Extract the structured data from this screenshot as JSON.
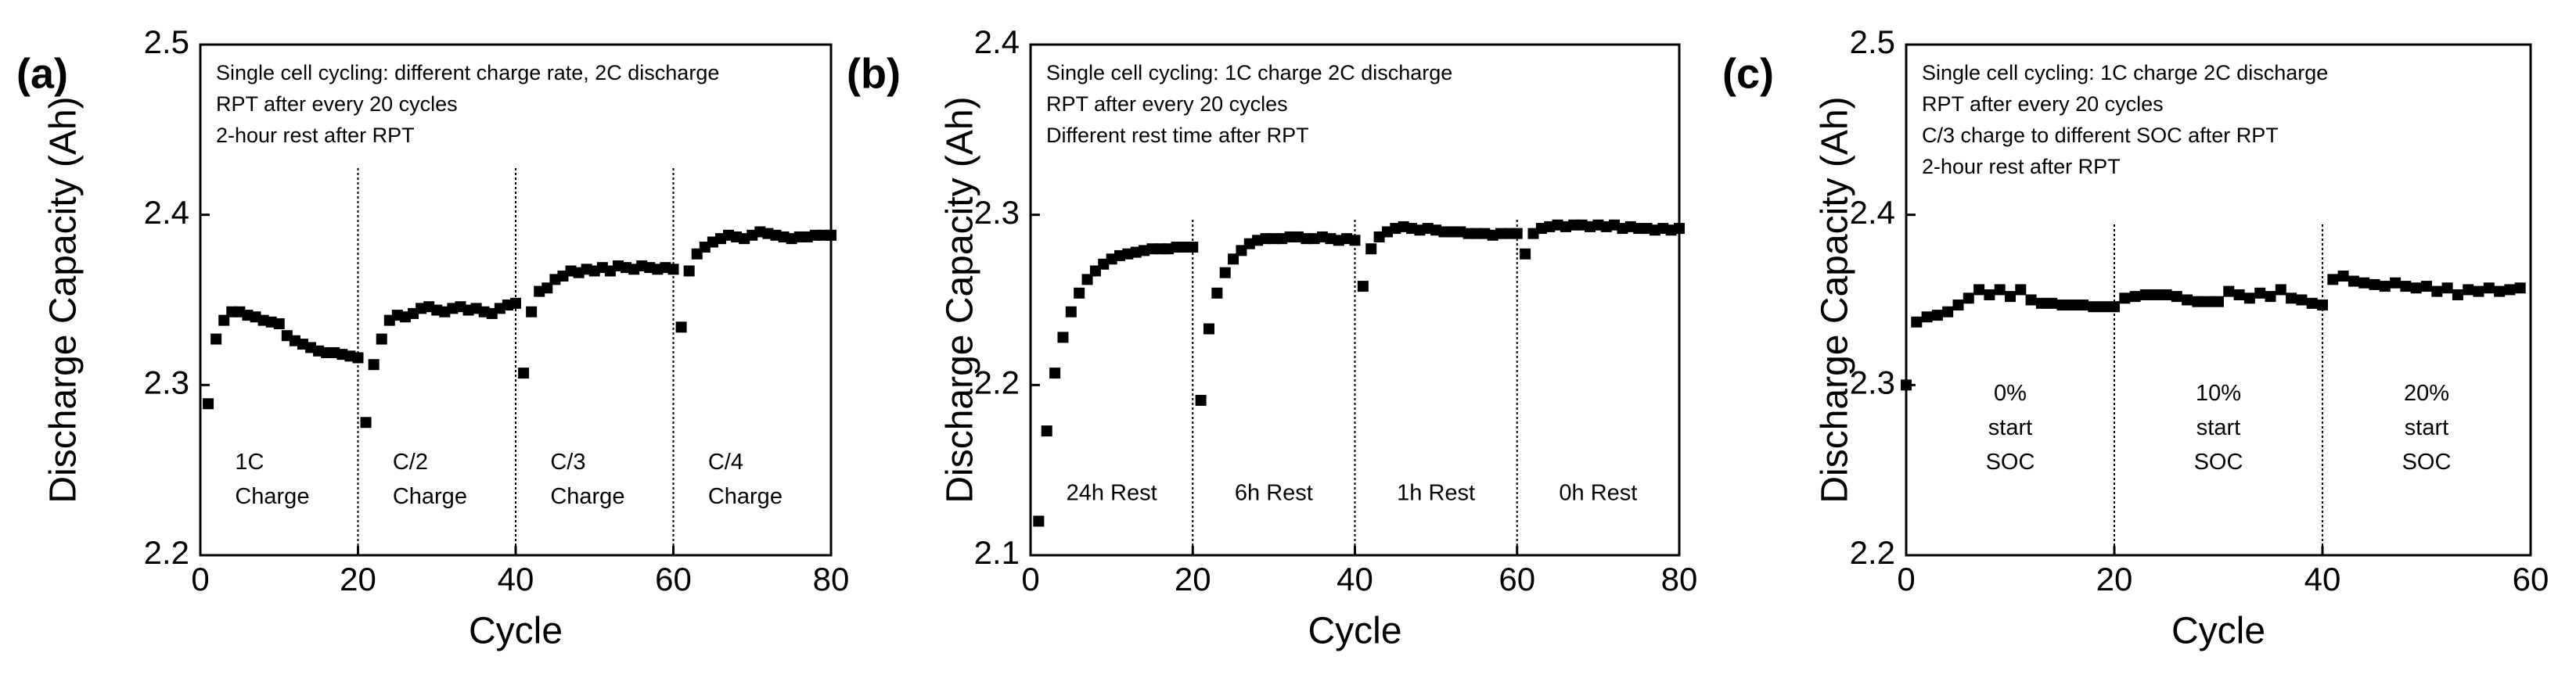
{
  "chart_data": [
    {
      "type": "scatter",
      "label": "(a)",
      "ylabel": "Discharge Capacity (Ah)",
      "xlabel": "Cycle",
      "annotations": [
        "Single cell cycling: different charge rate, 2C discharge",
        "RPT after every 20 cycles",
        "2-hour rest after RPT"
      ],
      "regions": [
        [
          "1C",
          "Charge"
        ],
        [
          "C/2",
          "Charge"
        ],
        [
          "C/3",
          "Charge"
        ],
        [
          "C/4",
          "Charge"
        ]
      ],
      "vlines": [
        20,
        40,
        60
      ],
      "xlim": [
        0,
        80
      ],
      "xticks": [
        0,
        20,
        40,
        60,
        80
      ],
      "ylim": [
        2.2,
        2.5
      ],
      "yticks": [
        2.2,
        2.3,
        2.4,
        2.5
      ],
      "color": "#000000",
      "x": [
        1,
        2,
        3,
        4,
        5,
        6,
        7,
        8,
        9,
        10,
        11,
        12,
        13,
        14,
        15,
        16,
        17,
        18,
        19,
        20,
        21,
        22,
        23,
        24,
        25,
        26,
        27,
        28,
        29,
        30,
        31,
        32,
        33,
        34,
        35,
        36,
        37,
        38,
        39,
        40,
        41,
        42,
        43,
        44,
        45,
        46,
        47,
        48,
        49,
        50,
        51,
        52,
        53,
        54,
        55,
        56,
        57,
        58,
        59,
        60,
        61,
        62,
        63,
        64,
        65,
        66,
        67,
        68,
        69,
        70,
        71,
        72,
        73,
        74,
        75,
        76,
        77,
        78,
        79,
        80
      ],
      "values": [
        2.289,
        2.327,
        2.338,
        2.343,
        2.343,
        2.341,
        2.34,
        2.338,
        2.337,
        2.336,
        2.329,
        2.326,
        2.324,
        2.322,
        2.32,
        2.319,
        2.319,
        2.318,
        2.317,
        2.316,
        2.278,
        2.312,
        2.327,
        2.338,
        2.341,
        2.34,
        2.342,
        2.345,
        2.346,
        2.344,
        2.343,
        2.345,
        2.346,
        2.344,
        2.345,
        2.343,
        2.342,
        2.345,
        2.347,
        2.348,
        2.307,
        2.343,
        2.355,
        2.357,
        2.362,
        2.364,
        2.367,
        2.366,
        2.368,
        2.367,
        2.369,
        2.367,
        2.37,
        2.369,
        2.368,
        2.37,
        2.369,
        2.368,
        2.369,
        2.368,
        2.334,
        2.367,
        2.377,
        2.381,
        2.384,
        2.386,
        2.388,
        2.387,
        2.386,
        2.388,
        2.39,
        2.389,
        2.388,
        2.387,
        2.386,
        2.387,
        2.387,
        2.388,
        2.388,
        2.388
      ]
    },
    {
      "type": "scatter",
      "label": "(b)",
      "ylabel": "Discharge Capacity (Ah)",
      "xlabel": "Cycle",
      "annotations": [
        "Single cell cycling: 1C charge 2C discharge",
        "RPT after every 20 cycles",
        "Different rest time after RPT"
      ],
      "regions": [
        [
          "24h Rest"
        ],
        [
          "6h Rest"
        ],
        [
          "1h Rest"
        ],
        [
          "0h Rest"
        ]
      ],
      "vlines": [
        20,
        40,
        60
      ],
      "xlim": [
        0,
        80
      ],
      "xticks": [
        0,
        20,
        40,
        60,
        80
      ],
      "ylim": [
        2.1,
        2.4
      ],
      "yticks": [
        2.1,
        2.2,
        2.3,
        2.4
      ],
      "color": "#000000",
      "x": [
        1,
        2,
        3,
        4,
        5,
        6,
        7,
        8,
        9,
        10,
        11,
        12,
        13,
        14,
        15,
        16,
        17,
        18,
        19,
        20,
        21,
        22,
        23,
        24,
        25,
        26,
        27,
        28,
        29,
        30,
        31,
        32,
        33,
        34,
        35,
        36,
        37,
        38,
        39,
        40,
        41,
        42,
        43,
        44,
        45,
        46,
        47,
        48,
        49,
        50,
        51,
        52,
        53,
        54,
        55,
        56,
        57,
        58,
        59,
        60,
        61,
        62,
        63,
        64,
        65,
        66,
        67,
        68,
        69,
        70,
        71,
        72,
        73,
        74,
        75,
        76,
        77,
        78,
        79,
        80
      ],
      "values": [
        2.12,
        2.173,
        2.207,
        2.228,
        2.243,
        2.254,
        2.262,
        2.267,
        2.271,
        2.274,
        2.276,
        2.277,
        2.278,
        2.279,
        2.28,
        2.28,
        2.28,
        2.281,
        2.281,
        2.281,
        2.191,
        2.233,
        2.254,
        2.266,
        2.274,
        2.279,
        2.283,
        2.285,
        2.286,
        2.286,
        2.286,
        2.287,
        2.287,
        2.286,
        2.286,
        2.287,
        2.286,
        2.285,
        2.286,
        2.285,
        2.258,
        2.28,
        2.287,
        2.29,
        2.292,
        2.293,
        2.292,
        2.291,
        2.292,
        2.291,
        2.29,
        2.29,
        2.29,
        2.289,
        2.289,
        2.289,
        2.288,
        2.289,
        2.289,
        2.289,
        2.277,
        2.289,
        2.292,
        2.293,
        2.294,
        2.293,
        2.294,
        2.294,
        2.293,
        2.294,
        2.293,
        2.294,
        2.292,
        2.293,
        2.292,
        2.292,
        2.291,
        2.292,
        2.291,
        2.292
      ]
    },
    {
      "type": "scatter",
      "label": "(c)",
      "ylabel": "Discharge Capacity (Ah)",
      "xlabel": "Cycle",
      "annotations": [
        "Single cell cycling: 1C charge 2C discharge",
        "RPT after every 20 cycles",
        "C/3 charge to different SOC after RPT",
        "2-hour rest after RPT"
      ],
      "regions": [
        [
          "0%",
          "start",
          "SOC"
        ],
        [
          "10%",
          "start",
          "SOC"
        ],
        [
          "20%",
          "start",
          "SOC"
        ]
      ],
      "vlines": [
        20,
        40
      ],
      "xlim": [
        0,
        60
      ],
      "xticks": [
        0,
        20,
        40,
        60
      ],
      "ylim": [
        2.2,
        2.5
      ],
      "yticks": [
        2.2,
        2.3,
        2.4,
        2.5
      ],
      "color": "#000000",
      "x": [
        0,
        1,
        2,
        3,
        4,
        5,
        6,
        7,
        8,
        9,
        10,
        11,
        12,
        13,
        14,
        15,
        16,
        17,
        18,
        19,
        20,
        21,
        22,
        23,
        24,
        25,
        26,
        27,
        28,
        29,
        30,
        31,
        32,
        33,
        34,
        35,
        36,
        37,
        38,
        39,
        40,
        41,
        42,
        43,
        44,
        45,
        46,
        47,
        48,
        49,
        50,
        51,
        52,
        53,
        54,
        55,
        56,
        57,
        58,
        59
      ],
      "values": [
        2.3,
        2.337,
        2.34,
        2.341,
        2.343,
        2.347,
        2.351,
        2.356,
        2.353,
        2.356,
        2.352,
        2.356,
        2.35,
        2.348,
        2.348,
        2.347,
        2.347,
        2.347,
        2.346,
        2.346,
        2.346,
        2.351,
        2.352,
        2.353,
        2.353,
        2.353,
        2.352,
        2.35,
        2.349,
        2.349,
        2.349,
        2.355,
        2.353,
        2.351,
        2.354,
        2.352,
        2.356,
        2.351,
        2.35,
        2.348,
        2.347,
        2.362,
        2.364,
        2.361,
        2.36,
        2.359,
        2.358,
        2.36,
        2.358,
        2.357,
        2.358,
        2.355,
        2.357,
        2.353,
        2.356,
        2.355,
        2.357,
        2.355,
        2.356,
        2.357
      ]
    }
  ]
}
